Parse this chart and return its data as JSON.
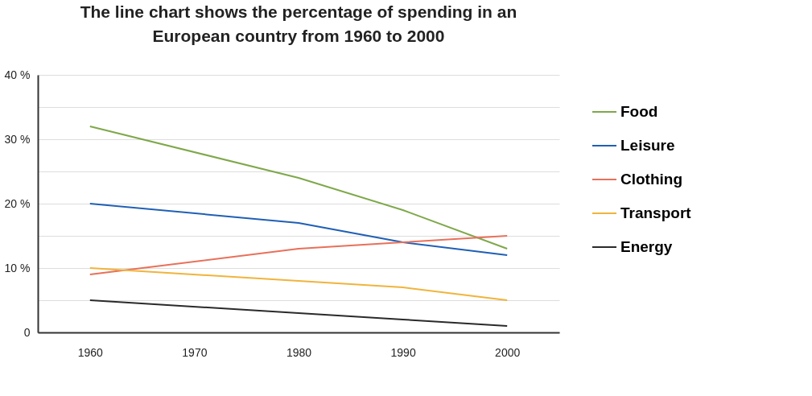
{
  "chart_data": {
    "type": "line",
    "title": "The line chart shows the percentage of spending in an European country from 1960 to 2000",
    "x": [
      1960,
      1980,
      1990,
      2000
    ],
    "series": [
      {
        "name": "Food",
        "color": "#7ea84a",
        "values": [
          32,
          24,
          19,
          13
        ]
      },
      {
        "name": "Leisure",
        "color": "#1f5fb5",
        "values": [
          20,
          17,
          14,
          12
        ]
      },
      {
        "name": "Clothing",
        "color": "#e8705a",
        "values": [
          9,
          13,
          14,
          15
        ]
      },
      {
        "name": "Transport",
        "color": "#f0b43c",
        "values": [
          10,
          8,
          7,
          5
        ]
      },
      {
        "name": "Energy",
        "color": "#2a2a2a",
        "values": [
          5,
          3,
          2,
          1
        ]
      }
    ],
    "xlim": [
      1955,
      2005
    ],
    "xticks": [
      1960,
      1970,
      1980,
      1990,
      2000
    ],
    "ylim": [
      0,
      40
    ],
    "yticks": [
      0,
      {
        "value": 5,
        "label": null
      },
      {
        "value": 10,
        "label": "10 %"
      },
      {
        "value": 15,
        "label": null
      },
      {
        "value": 20,
        "label": "20 %"
      },
      {
        "value": 25,
        "label": null
      },
      {
        "value": 30,
        "label": "30 %"
      },
      {
        "value": 35,
        "label": null
      },
      {
        "value": 40,
        "label": "40 %"
      }
    ],
    "grid": "y",
    "legend": "right",
    "marker": "none",
    "line_style": "solid"
  }
}
